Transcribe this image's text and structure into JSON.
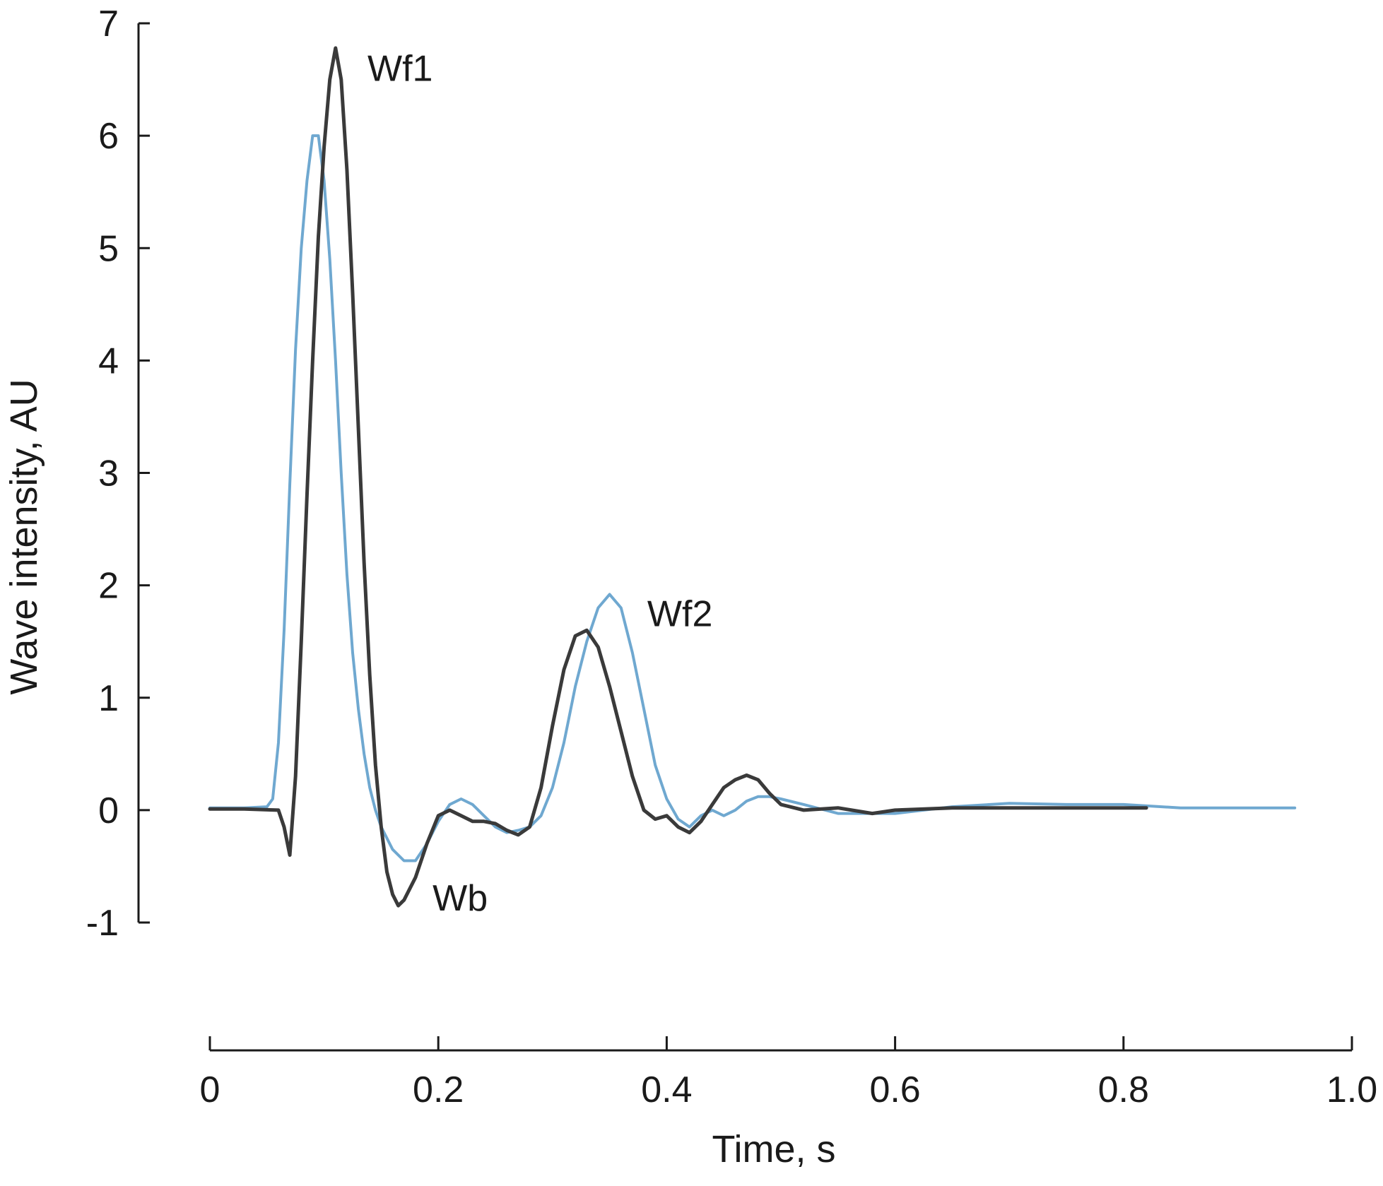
{
  "chart_data": {
    "type": "line",
    "xlabel": "Time, s",
    "ylabel": "Wave intensity, AU",
    "xlim": [
      0,
      1.0
    ],
    "ylim": [
      -1,
      7
    ],
    "xticks": [
      "0",
      "0.2",
      "0.4",
      "0.6",
      "0.8",
      "1.0"
    ],
    "yticks": [
      "-1",
      "0",
      "1",
      "2",
      "3",
      "4",
      "5",
      "6",
      "7"
    ],
    "grid": false,
    "series": [
      {
        "color": "#6fa8d0",
        "points": [
          [
            0.0,
            0.02
          ],
          [
            0.03,
            0.02
          ],
          [
            0.05,
            0.03
          ],
          [
            0.055,
            0.1
          ],
          [
            0.06,
            0.6
          ],
          [
            0.065,
            1.6
          ],
          [
            0.07,
            2.9
          ],
          [
            0.075,
            4.1
          ],
          [
            0.08,
            5.0
          ],
          [
            0.085,
            5.6
          ],
          [
            0.09,
            6.0
          ],
          [
            0.095,
            6.0
          ],
          [
            0.1,
            5.6
          ],
          [
            0.105,
            4.9
          ],
          [
            0.11,
            4.0
          ],
          [
            0.115,
            3.0
          ],
          [
            0.12,
            2.1
          ],
          [
            0.125,
            1.4
          ],
          [
            0.13,
            0.9
          ],
          [
            0.135,
            0.5
          ],
          [
            0.14,
            0.2
          ],
          [
            0.145,
            0.0
          ],
          [
            0.15,
            -0.15
          ],
          [
            0.16,
            -0.35
          ],
          [
            0.17,
            -0.45
          ],
          [
            0.18,
            -0.45
          ],
          [
            0.19,
            -0.3
          ],
          [
            0.2,
            -0.1
          ],
          [
            0.21,
            0.05
          ],
          [
            0.22,
            0.1
          ],
          [
            0.23,
            0.05
          ],
          [
            0.24,
            -0.05
          ],
          [
            0.25,
            -0.15
          ],
          [
            0.26,
            -0.2
          ],
          [
            0.27,
            -0.18
          ],
          [
            0.28,
            -0.15
          ],
          [
            0.29,
            -0.05
          ],
          [
            0.3,
            0.2
          ],
          [
            0.31,
            0.6
          ],
          [
            0.32,
            1.1
          ],
          [
            0.33,
            1.5
          ],
          [
            0.34,
            1.8
          ],
          [
            0.35,
            1.92
          ],
          [
            0.36,
            1.8
          ],
          [
            0.37,
            1.4
          ],
          [
            0.38,
            0.9
          ],
          [
            0.39,
            0.4
          ],
          [
            0.4,
            0.1
          ],
          [
            0.41,
            -0.08
          ],
          [
            0.42,
            -0.15
          ],
          [
            0.43,
            -0.05
          ],
          [
            0.44,
            0.0
          ],
          [
            0.45,
            -0.05
          ],
          [
            0.46,
            0.0
          ],
          [
            0.47,
            0.08
          ],
          [
            0.48,
            0.12
          ],
          [
            0.49,
            0.12
          ],
          [
            0.5,
            0.1
          ],
          [
            0.52,
            0.05
          ],
          [
            0.55,
            -0.03
          ],
          [
            0.6,
            -0.03
          ],
          [
            0.65,
            0.03
          ],
          [
            0.7,
            0.06
          ],
          [
            0.75,
            0.05
          ],
          [
            0.8,
            0.05
          ],
          [
            0.85,
            0.02
          ],
          [
            0.9,
            0.02
          ],
          [
            0.95,
            0.02
          ]
        ]
      },
      {
        "color": "#3a3a3a",
        "points": [
          [
            0.0,
            0.01
          ],
          [
            0.03,
            0.01
          ],
          [
            0.06,
            0.0
          ],
          [
            0.065,
            -0.15
          ],
          [
            0.07,
            -0.4
          ],
          [
            0.075,
            0.3
          ],
          [
            0.08,
            1.5
          ],
          [
            0.085,
            2.8
          ],
          [
            0.09,
            4.0
          ],
          [
            0.095,
            5.1
          ],
          [
            0.1,
            5.9
          ],
          [
            0.105,
            6.5
          ],
          [
            0.11,
            6.78
          ],
          [
            0.115,
            6.5
          ],
          [
            0.12,
            5.7
          ],
          [
            0.125,
            4.6
          ],
          [
            0.13,
            3.4
          ],
          [
            0.135,
            2.2
          ],
          [
            0.14,
            1.2
          ],
          [
            0.145,
            0.4
          ],
          [
            0.15,
            -0.15
          ],
          [
            0.155,
            -0.55
          ],
          [
            0.16,
            -0.75
          ],
          [
            0.165,
            -0.85
          ],
          [
            0.17,
            -0.8
          ],
          [
            0.18,
            -0.6
          ],
          [
            0.19,
            -0.3
          ],
          [
            0.2,
            -0.05
          ],
          [
            0.21,
            0.0
          ],
          [
            0.22,
            -0.05
          ],
          [
            0.23,
            -0.1
          ],
          [
            0.24,
            -0.1
          ],
          [
            0.25,
            -0.12
          ],
          [
            0.26,
            -0.18
          ],
          [
            0.27,
            -0.22
          ],
          [
            0.28,
            -0.15
          ],
          [
            0.29,
            0.2
          ],
          [
            0.3,
            0.75
          ],
          [
            0.31,
            1.25
          ],
          [
            0.32,
            1.55
          ],
          [
            0.33,
            1.6
          ],
          [
            0.34,
            1.45
          ],
          [
            0.35,
            1.1
          ],
          [
            0.36,
            0.7
          ],
          [
            0.37,
            0.3
          ],
          [
            0.38,
            0.0
          ],
          [
            0.39,
            -0.08
          ],
          [
            0.4,
            -0.05
          ],
          [
            0.41,
            -0.15
          ],
          [
            0.42,
            -0.2
          ],
          [
            0.43,
            -0.1
          ],
          [
            0.44,
            0.05
          ],
          [
            0.45,
            0.2
          ],
          [
            0.46,
            0.27
          ],
          [
            0.47,
            0.31
          ],
          [
            0.48,
            0.27
          ],
          [
            0.49,
            0.15
          ],
          [
            0.5,
            0.05
          ],
          [
            0.52,
            0.0
          ],
          [
            0.55,
            0.02
          ],
          [
            0.58,
            -0.03
          ],
          [
            0.6,
            0.0
          ],
          [
            0.65,
            0.02
          ],
          [
            0.7,
            0.02
          ],
          [
            0.75,
            0.02
          ],
          [
            0.8,
            0.02
          ],
          [
            0.82,
            0.02
          ]
        ]
      }
    ],
    "annotations": [
      {
        "text": "Wf1",
        "x": 0.138,
        "y": 6.6
      },
      {
        "text": "Wf2",
        "x": 0.383,
        "y": 1.75
      },
      {
        "text": "Wb",
        "x": 0.195,
        "y": -0.78
      }
    ]
  }
}
